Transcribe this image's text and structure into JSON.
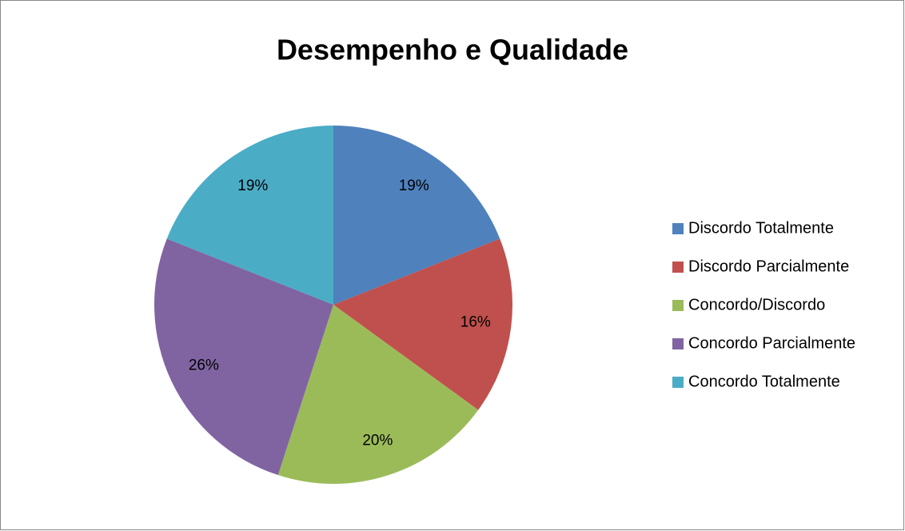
{
  "chart_data": {
    "type": "pie",
    "title": "Desempenho e Qualidade",
    "categories": [
      "Discordo Totalmente",
      "Discordo Parcialmente",
      "Concordo/Discordo",
      "Concordo Parcialmente",
      "Concordo Totalmente"
    ],
    "values": [
      19,
      16,
      20,
      26,
      19
    ],
    "value_labels": [
      "19%",
      "16%",
      "20%",
      "26%",
      "19%"
    ],
    "colors": [
      "#4f81bd",
      "#c0504d",
      "#9bbb59",
      "#8064a2",
      "#4bacc6"
    ],
    "legend": "right"
  }
}
